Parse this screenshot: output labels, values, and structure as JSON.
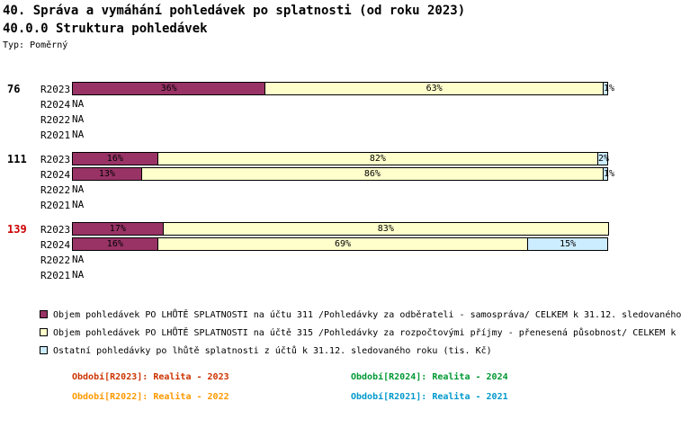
{
  "header": {
    "title": "40. Správa a vymáhání pohledávek po splatnosti (od roku 2023)",
    "subtitle": "40.0.0 Struktura pohledávek",
    "type_label": "Typ: Poměrný"
  },
  "chart_data": {
    "type": "bar",
    "variant": "horizontal-stacked-percent",
    "unit": "%",
    "xlim": [
      0,
      100
    ],
    "na_label": "NA",
    "segment_names": [
      "pohledavky-ucet-311-po-splatnosti",
      "pohledavky-ucet-315-po-splatnosti",
      "ostatni-pohledavky-po-splatnosti"
    ],
    "segment_colors": [
      "#993366",
      "#FFFFCC",
      "#CCECFF"
    ],
    "groups": [
      {
        "number": "76",
        "number_color": "#000000",
        "rows": [
          {
            "label": "R2023",
            "values": [
              36,
              63,
              1
            ]
          },
          {
            "label": "R2024",
            "values": null
          },
          {
            "label": "R2022",
            "values": null
          },
          {
            "label": "R2021",
            "values": null
          }
        ]
      },
      {
        "number": "111",
        "number_color": "#000000",
        "rows": [
          {
            "label": "R2023",
            "values": [
              16,
              82,
              2
            ]
          },
          {
            "label": "R2024",
            "values": [
              13,
              86,
              1
            ]
          },
          {
            "label": "R2022",
            "values": null
          },
          {
            "label": "R2021",
            "values": null
          }
        ]
      },
      {
        "number": "139",
        "number_color": "#CC0000",
        "rows": [
          {
            "label": "R2023",
            "values": [
              17,
              83,
              0
            ]
          },
          {
            "label": "R2024",
            "values": [
              16,
              69,
              15
            ]
          },
          {
            "label": "R2022",
            "values": null
          },
          {
            "label": "R2021",
            "values": null
          }
        ]
      }
    ]
  },
  "legend": {
    "items": [
      {
        "color": "#993366",
        "text": "Objem pohledávek PO LHŮTĚ SPLATNOSTI na účtu 311 /Pohledávky za odběrateli - samospráva/ CELKEM k 31.12. sledovaného"
      },
      {
        "color": "#FFFFCC",
        "text": "Objem pohledávek PO LHŮTĚ SPLATNOSTI na účtě 315 /Pohledávky za rozpočtovými příjmy - přenesená působnost/ CELKEM k"
      },
      {
        "color": "#CCECFF",
        "text": "Ostatní pohledávky po lhůtě splatnosti z účtů k 31.12. sledovaného roku (tis. Kč)"
      }
    ]
  },
  "periods": {
    "items": [
      {
        "label": "Období[R2023]:",
        "value": "Realita - 2023",
        "color": "#CC3300"
      },
      {
        "label": "Období[R2024]:",
        "value": "Realita - 2024",
        "color": "#009933"
      },
      {
        "label": "Období[R2022]:",
        "value": "Realita - 2022",
        "color": "#FF9900"
      },
      {
        "label": "Období[R2021]:",
        "value": "Realita - 2021",
        "color": "#0099CC"
      }
    ]
  }
}
